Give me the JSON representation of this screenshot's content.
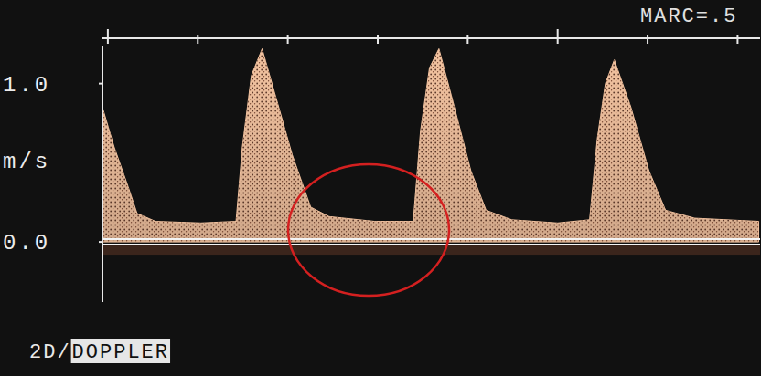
{
  "chart_data": {
    "type": "area",
    "annotations": [
      "MARC=.5",
      "2D/DOPPLER"
    ],
    "y_label": "m/s",
    "x": [
      -0.012,
      0.014,
      0.045,
      0.065,
      0.106,
      0.207,
      0.285,
      0.299,
      0.319,
      0.343,
      0.37,
      0.41,
      0.451,
      0.492,
      0.593,
      0.679,
      0.695,
      0.715,
      0.736,
      0.766,
      0.807,
      0.841,
      0.898,
      1.0,
      1.071,
      1.088,
      1.106,
      1.126,
      1.163,
      1.203,
      1.24,
      1.305,
      1.447
    ],
    "values": [
      0.85,
      0.6,
      0.35,
      0.18,
      0.13,
      0.12,
      0.13,
      0.6,
      1.05,
      1.22,
      0.95,
      0.55,
      0.22,
      0.16,
      0.13,
      0.13,
      0.7,
      1.1,
      1.22,
      0.9,
      0.45,
      0.2,
      0.14,
      0.12,
      0.14,
      0.65,
      1.0,
      1.15,
      0.85,
      0.45,
      0.2,
      0.15,
      0.13
    ],
    "color": "#f3c3a0",
    "xlim": [
      -0.012,
      1.45
    ],
    "xticks": [
      0,
      0.2,
      0.4,
      0.6,
      0.8,
      1.0,
      1.2,
      1.4
    ],
    "ylim": [
      -0.38,
      1.24
    ],
    "yticks": [
      {
        "value": 0,
        "label": "0.0"
      },
      {
        "value": 1,
        "label": "1.0"
      }
    ],
    "tick_labels": "y"
  }
}
